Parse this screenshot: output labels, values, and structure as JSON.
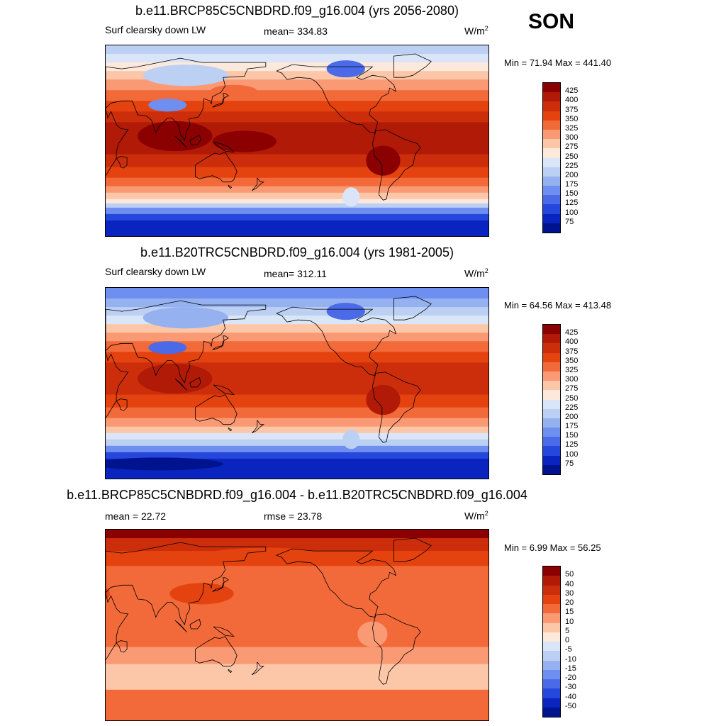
{
  "season": "SON",
  "panels": [
    {
      "title": "b.e11.BRCP85C5CNBDRD.f09_g16.004 (yrs 2056-2080)",
      "left_label": "Surf clearsky down LW",
      "mean_label": "mean= 334.83",
      "units_base": "W/m",
      "units_exp": "2",
      "minmax": "Min =  71.94 Max = 441.40",
      "colorbar_labels": [
        "425",
        "400",
        "375",
        "350",
        "325",
        "300",
        "275",
        "250",
        "225",
        "200",
        "175",
        "150",
        "125",
        "100",
        "75"
      ],
      "colorbar_colors": [
        "#8b0000",
        "#b01a06",
        "#cc2e0c",
        "#e4420f",
        "#f36a3a",
        "#fa9a74",
        "#fcc7a8",
        "#fde8dc",
        "#dae6f7",
        "#bcd0f3",
        "#95b1f0",
        "#6e8ff0",
        "#4a6ae8",
        "#2547dc",
        "#0a24c0",
        "#00138e"
      ],
      "map_scheme": "future"
    },
    {
      "title": "b.e11.B20TRC5CNBDRD.f09_g16.004 (yrs 1981-2005)",
      "left_label": "Surf clearsky down LW",
      "mean_label": "mean= 312.11",
      "units_base": "W/m",
      "units_exp": "2",
      "minmax": "Min =  64.56 Max = 413.48",
      "colorbar_labels": [
        "425",
        "400",
        "375",
        "350",
        "325",
        "300",
        "275",
        "250",
        "225",
        "200",
        "175",
        "150",
        "125",
        "100",
        "75"
      ],
      "colorbar_colors": [
        "#8b0000",
        "#b01a06",
        "#cc2e0c",
        "#e4420f",
        "#f36a3a",
        "#fa9a74",
        "#fcc7a8",
        "#fde8dc",
        "#dae6f7",
        "#bcd0f3",
        "#95b1f0",
        "#6e8ff0",
        "#4a6ae8",
        "#2547dc",
        "#0a24c0",
        "#00138e"
      ],
      "map_scheme": "historical"
    },
    {
      "title": "b.e11.BRCP85C5CNBDRD.f09_g16.004 - b.e11.B20TRC5CNBDRD.f09_g16.004",
      "left_label": "mean =  22.72",
      "mean_label": "rmse =  23.78",
      "units_base": "W/m",
      "units_exp": "2",
      "minmax": "Min =   6.99 Max =  56.25",
      "colorbar_labels": [
        "50",
        "40",
        "30",
        "20",
        "15",
        "10",
        "5",
        "0",
        "-5",
        "-10",
        "-15",
        "-20",
        "-30",
        "-40",
        "-50"
      ],
      "colorbar_colors": [
        "#8b0000",
        "#b01a06",
        "#cc2e0c",
        "#e4420f",
        "#f36a3a",
        "#fa9a74",
        "#fcc7a8",
        "#fde8dc",
        "#dae6f7",
        "#bcd0f3",
        "#95b1f0",
        "#6e8ff0",
        "#4a6ae8",
        "#2547dc",
        "#0a24c0",
        "#00138e"
      ],
      "map_scheme": "difference"
    }
  ]
}
